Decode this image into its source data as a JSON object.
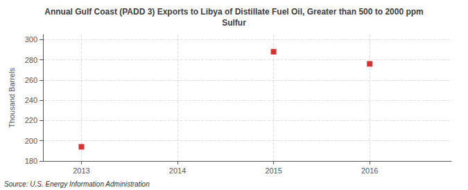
{
  "chart_data": {
    "type": "scatter",
    "title": "Annual Gulf Coast (PADD 3) Exports to Libya of Distillate Fuel Oil, Greater than 500 to 2000 ppm\nSulfur",
    "ylabel": "Thousand Barrels",
    "annotations": [
      "Source: U.S. Energy Information Administration"
    ],
    "x": [
      2013,
      2015,
      2016
    ],
    "values": [
      194,
      288,
      276
    ],
    "color": "#cc0000",
    "marker": "square",
    "xlim": [
      2012.6,
      2016.85
    ],
    "xticks": [
      2013,
      2014,
      2015,
      2016
    ],
    "ylim": [
      180,
      305
    ],
    "yticks": [
      180,
      200,
      220,
      240,
      260,
      280,
      300
    ],
    "grid": true
  }
}
